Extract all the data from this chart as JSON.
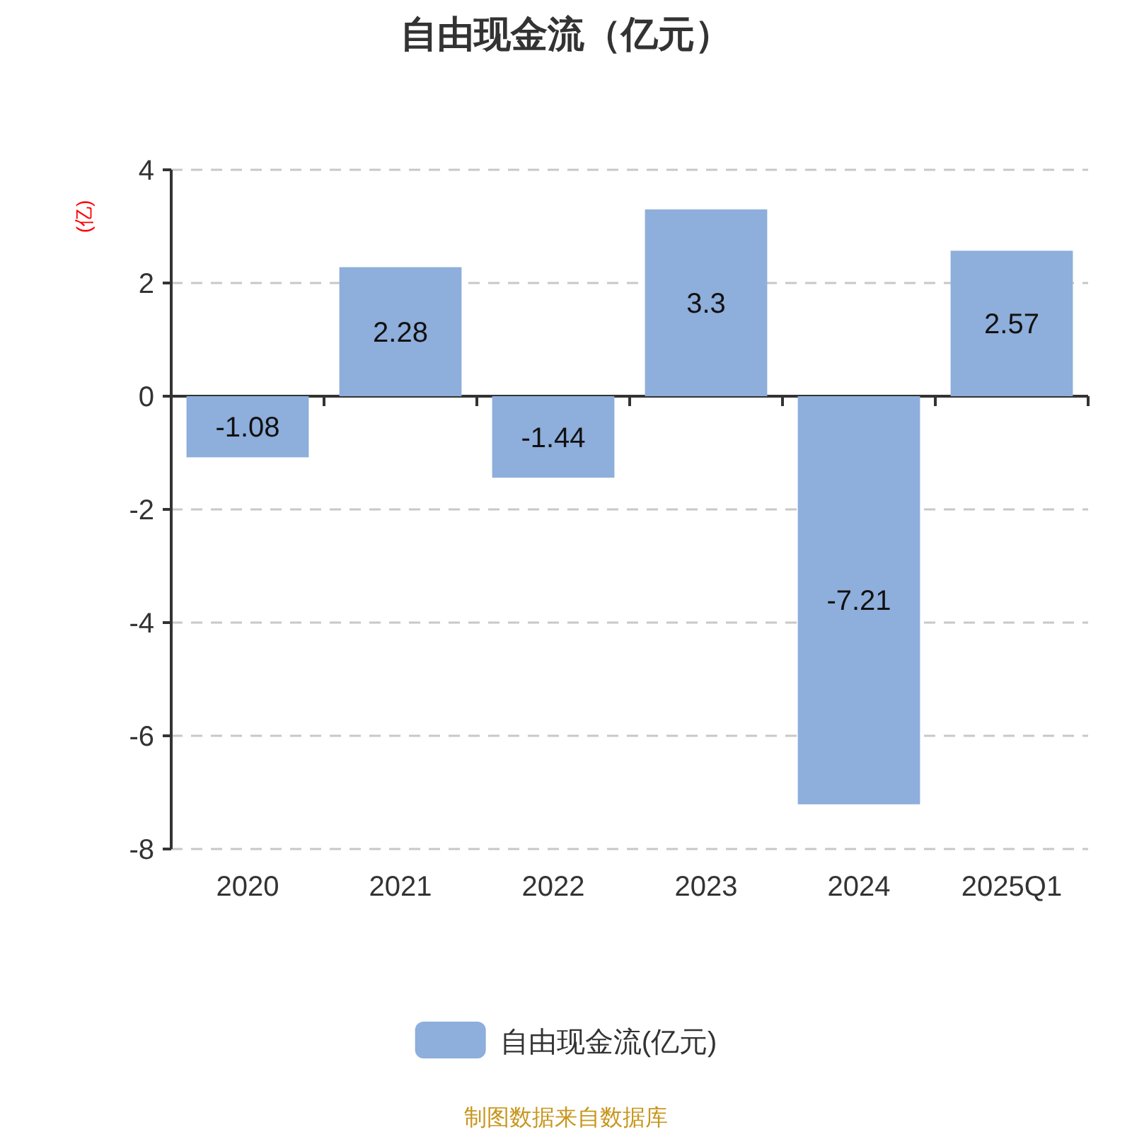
{
  "chart_data": {
    "type": "bar",
    "title": "自由现金流（亿元）",
    "ylabel": "(亿)",
    "categories": [
      "2020",
      "2021",
      "2022",
      "2023",
      "2024",
      "2025Q1"
    ],
    "series": [
      {
        "name": "自由现金流(亿元)",
        "color": "#8eaedb",
        "values": [
          -1.08,
          2.28,
          -1.44,
          3.3,
          -7.21,
          2.57
        ]
      }
    ],
    "ylim": [
      -8,
      4
    ],
    "yticks": [
      -8,
      -6,
      -4,
      -2,
      0,
      2,
      4
    ],
    "grid": "y",
    "legend": "bottom",
    "data_labels": true,
    "annotations": [
      "制图数据来自数据库"
    ]
  }
}
